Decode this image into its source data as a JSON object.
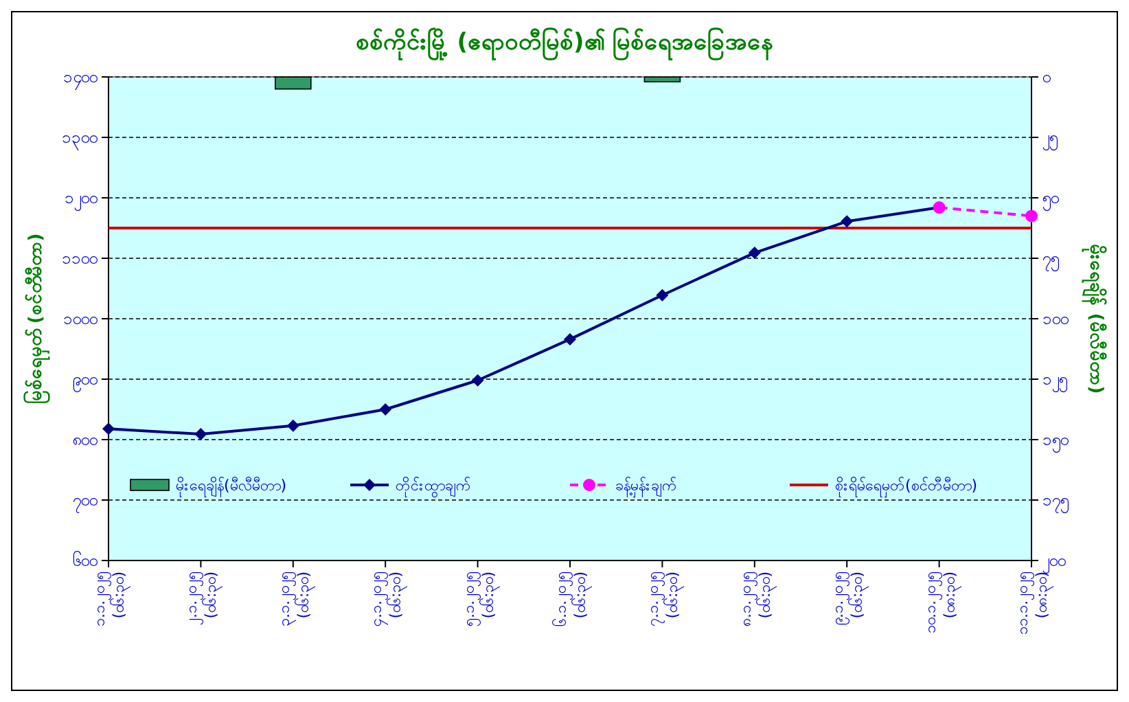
{
  "chart_data": {
    "type": "line",
    "title": "စစ်ကိုင်းမြို့ (ဧရာဝတီမြစ်)၏ မြစ်ရေအခြေအနေ",
    "ylabel": "မြစ်ရေမှတ် (စင်တီမီတာ)",
    "y2label": "မိုးရေချိန် (မီလီမီတာ)",
    "categories": [
      "၁.၁.၂၀၂၅\n(၀၆:၃၀)",
      "၂.၁.၂၀၂၅\n(၀၆:၃၀)",
      "၃.၁.၂၀၂၅\n(၀၆:၃၀)",
      "၄.၁.၂၀၂၅\n(၀၆:၃၀)",
      "၅.၁.၂၀၂၅\n(၀၆:၃၀)",
      "၆.၁.၂၀၂၅\n(၀၆:၃၀)",
      "၇.၁.၂၀၂၅\n(၀၆:၃၀)",
      "၈.၁.၂၀၂၅\n(၀၆:၃၀)",
      "၉.၁.၂၀၂၅\n(၀၆:၃၀)",
      "၁၀.၁.၂၀၂၅\n(၀၈:၃၀)",
      "၁၁.၁.၂၀၂၅\n(၀၈:၃၀)"
    ],
    "series": [
      {
        "name": "မိုးရေချိန်(မီလီမီတာ)",
        "type": "bar",
        "axis": "y2",
        "color": "#339966",
        "values": [
          null,
          null,
          5,
          null,
          null,
          null,
          2,
          null,
          null,
          null,
          null
        ]
      },
      {
        "name": "တိုင်းထွာချက်",
        "color": "#000080",
        "marker": "diamond",
        "line_style": "solid",
        "values": [
          818,
          809,
          823,
          850,
          898,
          966,
          1039,
          1109,
          1161,
          1184,
          null
        ]
      },
      {
        "name": "ခန့်မှန်းချက်",
        "color": "#ff00ff",
        "marker": "circle",
        "line_style": "dashed",
        "values": [
          null,
          null,
          null,
          null,
          null,
          null,
          null,
          null,
          null,
          1184,
          1170
        ]
      }
    ],
    "ref_lines": [
      {
        "axis": "y",
        "value": 1150,
        "label": "စိုးရိမ်ရေမှတ်(စင်တီမီတာ)",
        "color": "#cc0000"
      }
    ],
    "ylim": [
      600,
      1400
    ],
    "yticks": [
      {
        "value": 600,
        "label": "၆၀၀"
      },
      {
        "value": 700,
        "label": "၇၀၀"
      },
      {
        "value": 800,
        "label": "၈၀၀"
      },
      {
        "value": 900,
        "label": "၉၀၀"
      },
      {
        "value": 1000,
        "label": "၁၀၀၀"
      },
      {
        "value": 1100,
        "label": "၁၁၀၀"
      },
      {
        "value": 1200,
        "label": "၁၂၀၀"
      },
      {
        "value": 1300,
        "label": "၁၃၀၀"
      },
      {
        "value": 1400,
        "label": "၁၄၀၀"
      }
    ],
    "y2lim": [
      200,
      0
    ],
    "y2ticks": [
      {
        "value": 0,
        "label": "၀"
      },
      {
        "value": 25,
        "label": "၂၅"
      },
      {
        "value": 50,
        "label": "၅၀"
      },
      {
        "value": 75,
        "label": "၇၅"
      },
      {
        "value": 100,
        "label": "၁၀၀"
      },
      {
        "value": 125,
        "label": "၁၂၅"
      },
      {
        "value": 150,
        "label": "၁၅၀"
      },
      {
        "value": 175,
        "label": "၁၇၅"
      },
      {
        "value": 200,
        "label": "၂၀၀"
      }
    ],
    "grid": "y",
    "legend": "bottom"
  }
}
